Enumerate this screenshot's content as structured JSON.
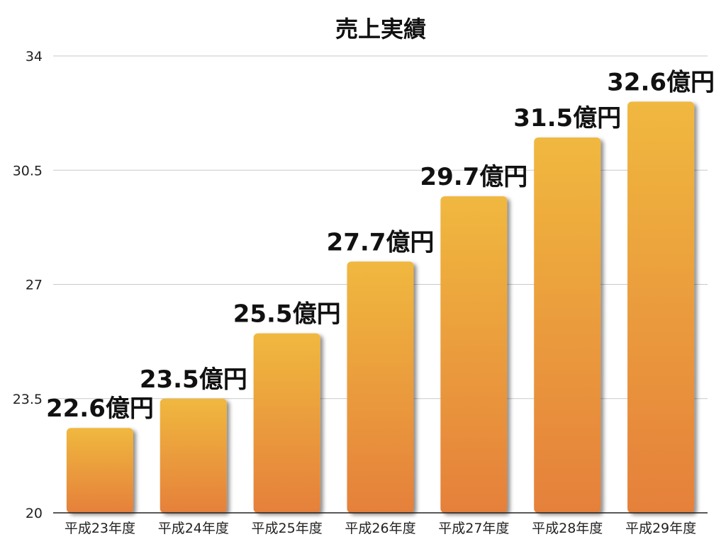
{
  "chart_data": {
    "type": "bar",
    "title": "売上実績",
    "categories": [
      "平成23年度",
      "平成24年度",
      "平成25年度",
      "平成26年度",
      "平成27年度",
      "平成28年度",
      "平成29年度"
    ],
    "values": [
      22.6,
      23.5,
      25.5,
      27.7,
      29.7,
      31.5,
      32.6
    ],
    "data_labels": [
      "22.6億円",
      "23.5億円",
      "25.5億円",
      "27.7億円",
      "29.7億円",
      "31.5億円",
      "32.6億円"
    ],
    "yticks": [
      20,
      23.5,
      27,
      30.5,
      34
    ],
    "ylim": [
      20,
      34
    ],
    "xlabel": "",
    "ylabel": "",
    "grid": true,
    "legend": "none",
    "colors": {
      "bar_top": "#f0b83f",
      "bar_bottom": "#e5803a"
    }
  }
}
